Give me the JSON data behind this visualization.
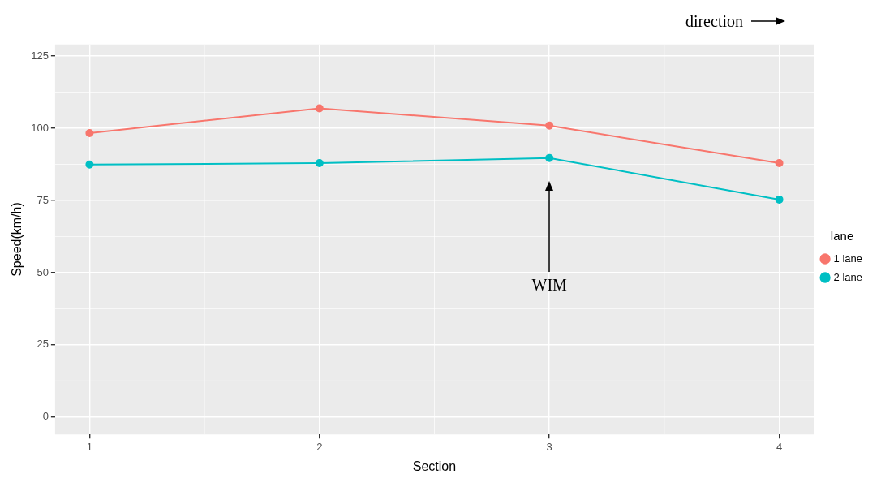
{
  "chart_data": {
    "type": "line",
    "xlabel": "Section",
    "ylabel": "Speed(km/h)",
    "legend_title": "lane",
    "x": [
      1,
      2,
      3,
      4
    ],
    "series": [
      {
        "name": "1 lane",
        "color": "#f8766d",
        "values": [
          98.3,
          106.9,
          100.9,
          87.9
        ]
      },
      {
        "name": "2 lane",
        "color": "#00bfc4",
        "values": [
          87.4,
          87.9,
          89.7,
          75.3
        ]
      }
    ],
    "xlim": [
      0.85,
      4.15
    ],
    "xticks": [
      1,
      2,
      3,
      4
    ],
    "ylim": [
      -6,
      129
    ],
    "yticks": [
      0,
      25,
      50,
      75,
      100,
      125
    ],
    "grid": true,
    "legend": "right",
    "marker": "circle",
    "line_style": "solid",
    "annotations": [
      "direction",
      "WIM"
    ]
  }
}
